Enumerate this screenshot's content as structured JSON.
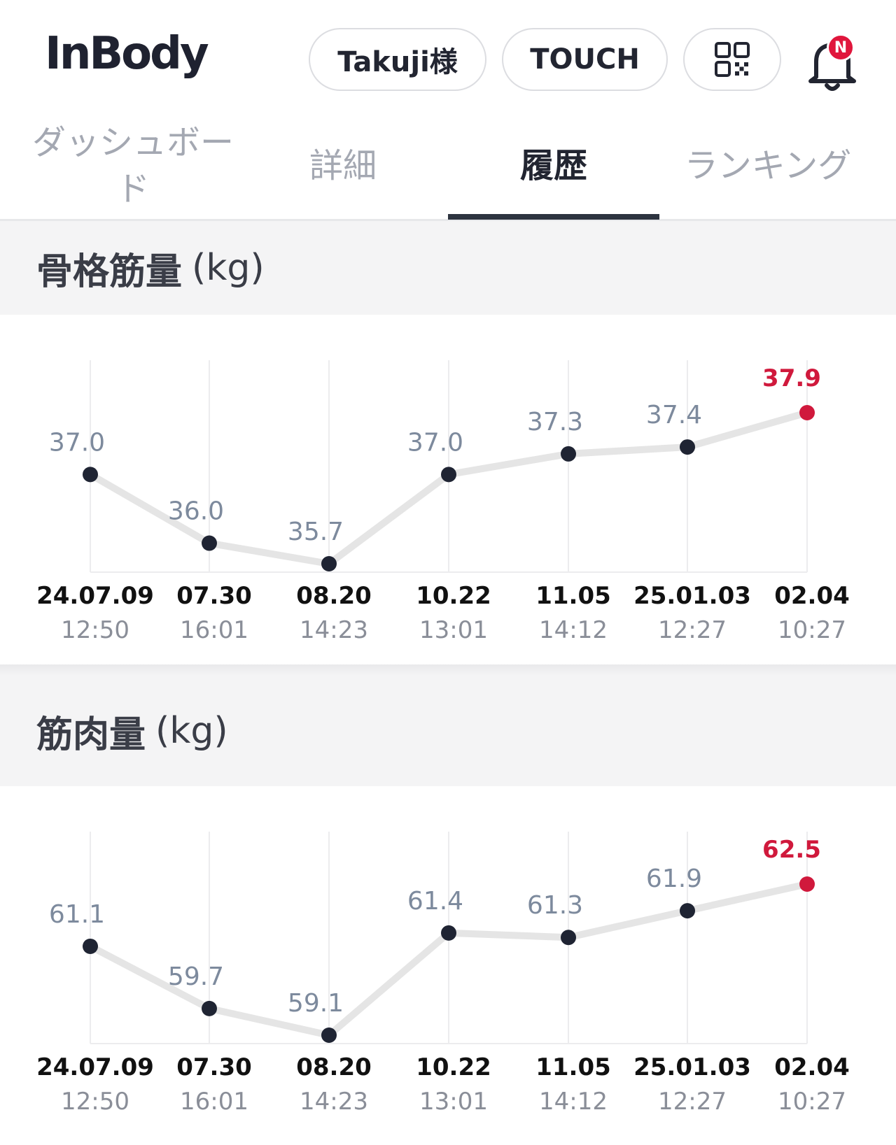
{
  "header": {
    "logo": "InBody",
    "user_label": "Takuji様",
    "touch_label": "TOUCH",
    "qr_icon": "qr-code-icon",
    "bell_icon": "bell-icon",
    "badge": "N"
  },
  "tabs": [
    {
      "label": "ダッシュボード",
      "active": false
    },
    {
      "label": "詳細",
      "active": false
    },
    {
      "label": "履歴",
      "active": true
    },
    {
      "label": "ランキング",
      "active": false
    }
  ],
  "sections": [
    {
      "title": "骨格筋量",
      "unit": "(kg)"
    },
    {
      "title": "筋肉量",
      "unit": "(kg)"
    }
  ],
  "colors": {
    "accent": "#d0193c",
    "point": "#1f2433",
    "line": "#e5e5e5",
    "value_label": "#7d8a9d"
  },
  "chart_data": [
    {
      "type": "line",
      "title": "骨格筋量 (kg)",
      "x": [
        {
          "date": "24.07.09",
          "time": "12:50"
        },
        {
          "date": "07.30",
          "time": "16:01"
        },
        {
          "date": "08.20",
          "time": "14:23"
        },
        {
          "date": "10.22",
          "time": "13:01"
        },
        {
          "date": "11.05",
          "time": "14:12"
        },
        {
          "date": "25.01.03",
          "time": "12:27"
        },
        {
          "date": "02.04",
          "time": "10:27"
        }
      ],
      "values": [
        37.0,
        36.0,
        35.7,
        37.0,
        37.3,
        37.4,
        37.9
      ],
      "labels": [
        "37.0",
        "36.0",
        "35.7",
        "37.0",
        "37.3",
        "37.4",
        "37.9"
      ],
      "highlight_last": true,
      "grid": true
    },
    {
      "type": "line",
      "title": "筋肉量 (kg)",
      "x": [
        {
          "date": "24.07.09",
          "time": "12:50"
        },
        {
          "date": "07.30",
          "time": "16:01"
        },
        {
          "date": "08.20",
          "time": "14:23"
        },
        {
          "date": "10.22",
          "time": "13:01"
        },
        {
          "date": "11.05",
          "time": "14:12"
        },
        {
          "date": "25.01.03",
          "time": "12:27"
        },
        {
          "date": "02.04",
          "time": "10:27"
        }
      ],
      "values": [
        61.1,
        59.7,
        59.1,
        61.4,
        61.3,
        61.9,
        62.5
      ],
      "labels": [
        "61.1",
        "59.7",
        "59.1",
        "61.4",
        "61.3",
        "61.9",
        "62.5"
      ],
      "highlight_last": true,
      "grid": true
    }
  ]
}
